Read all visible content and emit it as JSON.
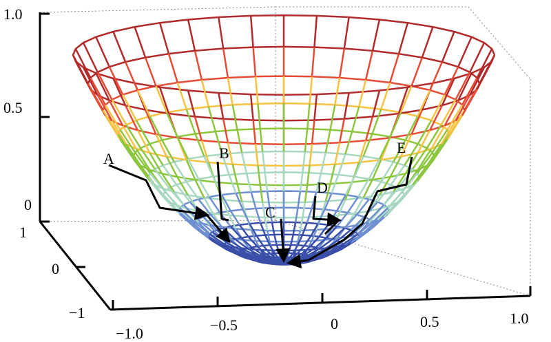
{
  "chart_data": {
    "type": "surface-mesh",
    "surface": "paraboloid bowl z = x^2 + y^2",
    "z_ticks": [
      "1.0",
      "0.5",
      "0"
    ],
    "x_ticks": [
      "−1.0",
      "−0.5",
      "0",
      "0.5",
      "1.0"
    ],
    "y_ticks": [
      "1",
      "0",
      "−1"
    ],
    "zlim": [
      0,
      1
    ],
    "xlim": [
      -1,
      1
    ],
    "ylim": [
      -1,
      1
    ],
    "grid": "dotted box edges",
    "colormap": [
      "#3a4fa8",
      "#6f8fd0",
      "#a8d8c0",
      "#8cc63f",
      "#f5c242",
      "#e64b35",
      "#b22a2a"
    ],
    "path_color": "#000000",
    "paths": [
      {
        "start": "A"
      },
      {
        "start": "B"
      },
      {
        "start": "C"
      },
      {
        "start": "D"
      },
      {
        "start": "E"
      }
    ],
    "point_labels": [
      "A",
      "B",
      "C",
      "D",
      "E"
    ]
  }
}
